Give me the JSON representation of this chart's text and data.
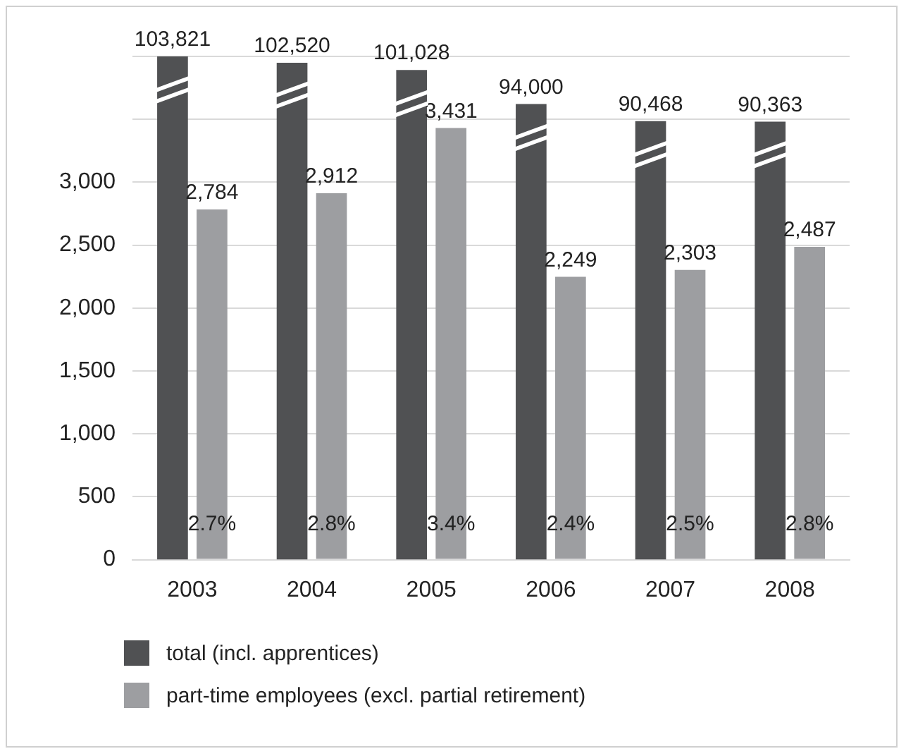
{
  "chart_data": {
    "type": "bar",
    "categories": [
      "2003",
      "2004",
      "2005",
      "2006",
      "2007",
      "2008"
    ],
    "series": [
      {
        "name": "total (incl. apprentices)",
        "color": "#505153",
        "axis": "y2",
        "values": [
          103821,
          102520,
          101028,
          94000,
          90468,
          90363
        ],
        "value_labels": [
          "103,821",
          "102,520",
          "101,028",
          "94,000",
          "90,468",
          "90,363"
        ]
      },
      {
        "name": "part-time employees (excl. partial retirement)",
        "color": "#9d9ea1",
        "values": [
          2784,
          2912,
          3431,
          2249,
          2303,
          2487
        ],
        "value_labels": [
          "2,784",
          "2,912",
          "3,431",
          "2,249",
          "2,303",
          "2,487"
        ]
      }
    ],
    "ylim": [
      0,
      4000
    ],
    "yticks": [
      0,
      500,
      {
        "value": 1000,
        "label": "1,000"
      },
      {
        "value": 1500,
        "label": "1,500"
      },
      {
        "value": 2000,
        "label": "2,000"
      },
      {
        "value": 2500,
        "label": "2,500"
      },
      {
        "value": 3000,
        "label": "3,000"
      },
      {
        "value": 3500,
        "label": null
      },
      {
        "value": 4000,
        "label": null
      }
    ],
    "grid": "y",
    "legend": "bottom",
    "annotations": [
      {
        "text": "2.7%",
        "x": "2003"
      },
      {
        "text": "2.8%",
        "x": "2004"
      },
      {
        "text": "3.4%",
        "x": "2005"
      },
      {
        "text": "2.4%",
        "x": "2006"
      },
      {
        "text": "2.5%",
        "x": "2007"
      },
      {
        "text": "2.8%",
        "x": "2008"
      }
    ]
  }
}
